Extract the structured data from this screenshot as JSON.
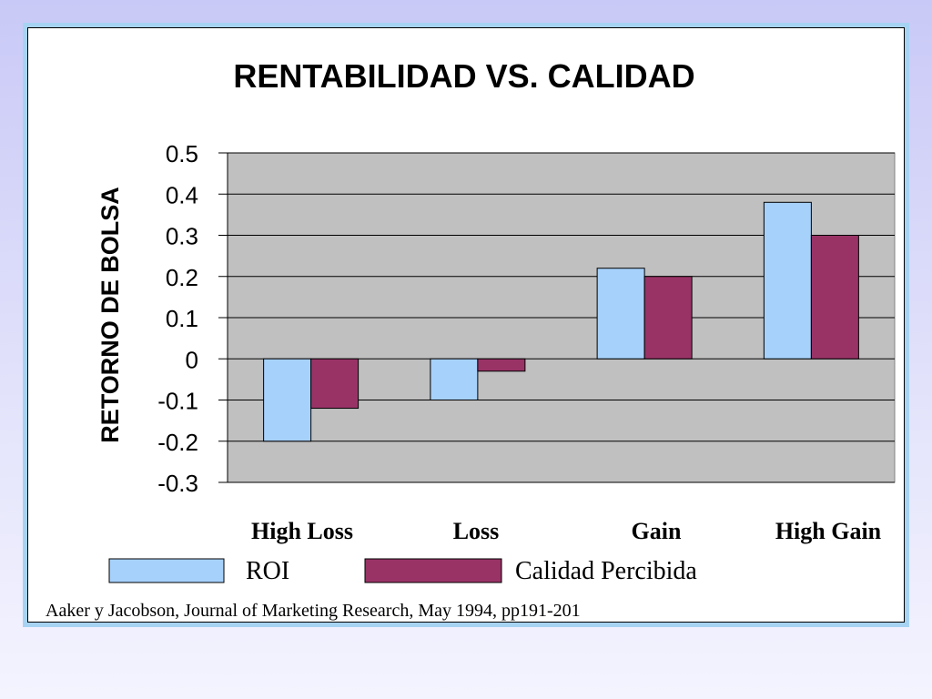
{
  "chart_data": {
    "type": "bar",
    "title": "RENTABILIDAD VS. CALIDAD",
    "xlabel": "",
    "ylabel": "RETORNO DE BOLSA",
    "categories": [
      "High Loss",
      "Loss",
      "Gain",
      "High Gain"
    ],
    "series": [
      {
        "name": "ROI",
        "values": [
          -0.2,
          -0.1,
          0.22,
          0.38
        ],
        "color": "#a6d1fb"
      },
      {
        "name": "Calidad Percibida",
        "values": [
          -0.12,
          -0.03,
          0.2,
          0.3
        ],
        "color": "#993366"
      }
    ],
    "ylim": [
      -0.3,
      0.5
    ],
    "yticks": [
      "0.5",
      "0.4",
      "0.3",
      "0.2",
      "0.1",
      "0",
      "-0.1",
      "-0.2",
      "-0.3"
    ],
    "grid": true,
    "plot_background": "#c0c0c0",
    "legend_position": "bottom"
  },
  "source": "Aaker y Jacobson, Journal of Marketing Research, May 1994, pp191-201"
}
